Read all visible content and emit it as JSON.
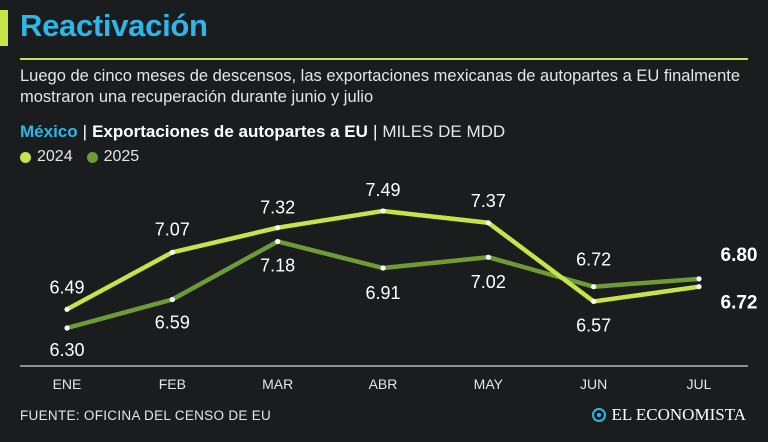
{
  "header": {
    "title": "Reactivación",
    "subtitle": "Luego de cinco meses de descensos, las exportaciones mexicanas de autopartes a EU finalmente mostraron una recuperación durante junio y julio"
  },
  "chart_header": {
    "country": "México",
    "separator": "|",
    "main": "Exportaciones de autopartes a EU",
    "separator2": "|",
    "units": "MILES DE MDD"
  },
  "legend": {
    "label_2024": "2024",
    "label_2025": "2025"
  },
  "colors": {
    "accent": "#c6e34a",
    "title": "#2fb6e6",
    "series_2024": "#c6e34a",
    "series_2025": "#6c9c35",
    "background": "#1a1c1e"
  },
  "chart_data": {
    "type": "line",
    "title": "Exportaciones de autopartes a EU",
    "ylabel": "MILES DE MDD",
    "xlabel": "",
    "categories": [
      "ENE",
      "FEB",
      "MAR",
      "ABR",
      "MAY",
      "JUN",
      "JUL"
    ],
    "ylim": [
      6.0,
      7.7
    ],
    "grid": false,
    "series": [
      {
        "name": "2024",
        "values": [
          6.49,
          7.07,
          7.32,
          7.49,
          7.37,
          6.57,
          6.72
        ],
        "labels": [
          "6.49",
          "7.07",
          "7.32",
          "7.49",
          "7.37",
          "6.57",
          "6.72"
        ]
      },
      {
        "name": "2025",
        "values": [
          6.3,
          6.59,
          7.18,
          6.91,
          7.02,
          6.72,
          6.8
        ],
        "labels": [
          "6.30",
          "6.59",
          "7.18",
          "6.91",
          "7.02",
          "6.72",
          "6.80"
        ]
      }
    ]
  },
  "footer": {
    "source": "FUENTE: OFICINA DEL CENSO DE EU",
    "brand": "EL ECONOMISTA"
  }
}
